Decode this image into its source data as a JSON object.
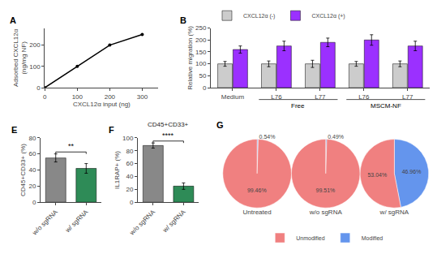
{
  "chart_data": [
    {
      "panel": "A",
      "type": "line",
      "xlabel": "CXCL12α input (ng)",
      "ylabel": "Adsorbed CXCL12α\n(ng/mg NF)",
      "x": [
        0,
        100,
        200,
        300
      ],
      "values": [
        0,
        100,
        200,
        250
      ],
      "xlim": [
        0,
        350
      ],
      "ylim": [
        0,
        280
      ],
      "xticks": [
        0,
        100,
        200,
        300
      ],
      "yticks": [
        0,
        100,
        200
      ],
      "color": "#000000",
      "marker": "circle",
      "line_style": "solid",
      "grid": false
    },
    {
      "panel": "B",
      "type": "bar",
      "ylabel": "Relative migration (%)",
      "categories": [
        "Medium",
        "L76",
        "L77",
        "L76",
        "L77"
      ],
      "series": [
        {
          "name": "CXCL12α (-)",
          "color": "#cccccc",
          "values": [
            100,
            100,
            100,
            100,
            100
          ],
          "errors": [
            10,
            12,
            15,
            10,
            12
          ]
        },
        {
          "name": "CXCL12α (+)",
          "color": "#9b30ff",
          "values": [
            160,
            175,
            190,
            200,
            175
          ],
          "errors": [
            15,
            20,
            18,
            22,
            20
          ]
        }
      ],
      "ylim": [
        0,
        250
      ],
      "yticks": [
        0,
        50,
        100,
        150,
        200,
        250
      ],
      "legend": "upper left",
      "grid": false,
      "annotations": [
        {
          "text": "Free",
          "span": [
            1,
            2
          ]
        },
        {
          "text": "MSCM-NF",
          "span": [
            3,
            4
          ]
        }
      ]
    },
    {
      "panel": "E",
      "type": "bar",
      "ylabel": "CD45+CD33+ (%)",
      "categories": [
        "w/o sgRNA",
        "w/ sgRNA"
      ],
      "values": [
        55,
        42
      ],
      "errors": [
        5,
        6
      ],
      "colors": [
        "#888888",
        "#2e8b57"
      ],
      "ylim": [
        0,
        80
      ],
      "yticks": [
        0,
        20,
        40,
        60,
        80
      ],
      "grid": false,
      "annotations": [
        {
          "text": "**",
          "between": [
            0,
            1
          ]
        }
      ]
    },
    {
      "panel": "F",
      "type": "bar",
      "title": "CD45+CD33+",
      "ylabel": "IL1RAP+ (%)",
      "categories": [
        "w/o sgRNA",
        "w/ sgRNA"
      ],
      "values": [
        88,
        25
      ],
      "errors": [
        4,
        5
      ],
      "colors": [
        "#888888",
        "#2e8b57"
      ],
      "ylim": [
        0,
        100
      ],
      "yticks": [
        0,
        20,
        40,
        60,
        80,
        100
      ],
      "grid": false,
      "annotations": [
        {
          "text": "****",
          "between": [
            0,
            1
          ]
        }
      ]
    },
    {
      "panel": "G",
      "type": "pie",
      "legend": "lower center",
      "pies": [
        {
          "title": "Untreated",
          "categories": [
            "Modified",
            "Unmodified"
          ],
          "values": [
            0.54,
            99.46
          ],
          "value_labels": [
            "0.54%",
            "99.46%"
          ],
          "colors": [
            "#6495ed",
            "#f08080"
          ]
        },
        {
          "title": "w/o sgRNA",
          "categories": [
            "Modified",
            "Unmodified"
          ],
          "values": [
            0.49,
            99.51
          ],
          "value_labels": [
            "0.49%",
            "99.51%"
          ],
          "colors": [
            "#6495ed",
            "#f08080"
          ]
        },
        {
          "title": "w/ sgRNA",
          "categories": [
            "Modified",
            "Unmodified"
          ],
          "values": [
            46.96,
            53.04
          ],
          "value_labels": [
            "46.96%",
            "53.04%"
          ],
          "colors": [
            "#6495ed",
            "#f08080"
          ]
        }
      ]
    }
  ]
}
